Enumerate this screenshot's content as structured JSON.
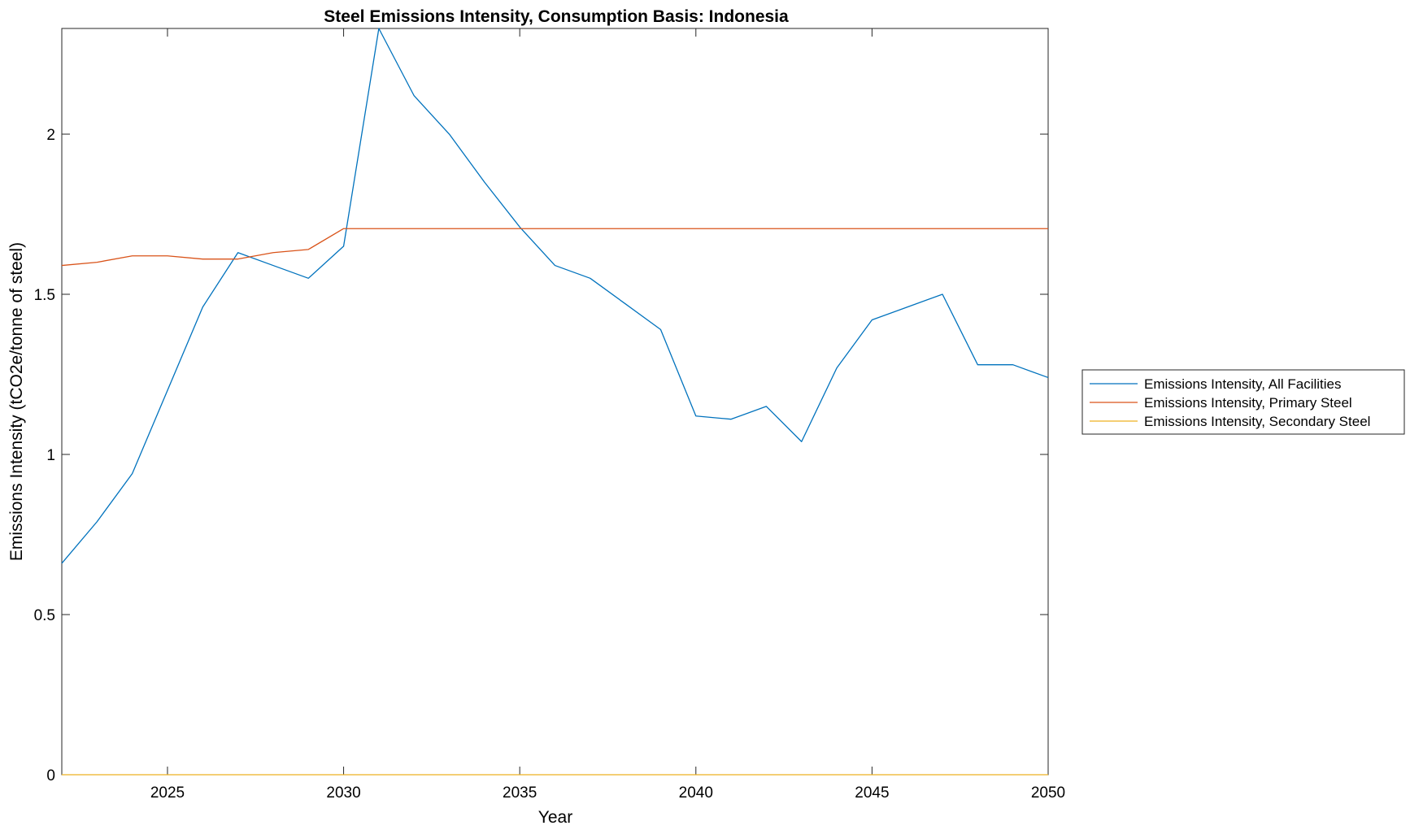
{
  "chart_data": {
    "type": "line",
    "title": "Steel Emissions Intensity, Consumption Basis: Indonesia",
    "xlabel": "Year",
    "ylabel": "Emissions Intensity (tCO2e/tonne of steel)",
    "xlim": [
      2022,
      2050
    ],
    "ylim": [
      0,
      2.33
    ],
    "xticks": [
      2025,
      2030,
      2035,
      2040,
      2045,
      2050
    ],
    "xtick_labels": [
      "2025",
      "2030",
      "2035",
      "2040",
      "2045",
      "2050"
    ],
    "yticks": [
      0,
      0.5,
      1,
      1.5,
      2
    ],
    "ytick_labels": [
      "0",
      "0.5",
      "1",
      "1.5",
      "2"
    ],
    "grid": false,
    "legend_position": "outside-right",
    "x": [
      2022,
      2023,
      2024,
      2025,
      2026,
      2027,
      2028,
      2029,
      2030,
      2031,
      2032,
      2033,
      2034,
      2035,
      2036,
      2037,
      2038,
      2039,
      2040,
      2041,
      2042,
      2043,
      2044,
      2045,
      2046,
      2047,
      2048,
      2049,
      2050
    ],
    "series": [
      {
        "name": "Emissions Intensity, All Facilities",
        "color": "#0072BD",
        "values": [
          0.66,
          0.79,
          0.94,
          1.2,
          1.46,
          1.63,
          1.59,
          1.55,
          1.65,
          2.33,
          2.12,
          2.0,
          1.85,
          1.71,
          1.59,
          1.55,
          1.47,
          1.39,
          1.12,
          1.11,
          1.15,
          1.04,
          1.27,
          1.42,
          1.46,
          1.5,
          1.28,
          1.28,
          1.24
        ]
      },
      {
        "name": "Emissions Intensity, Primary Steel",
        "color": "#D95319",
        "values": [
          1.59,
          1.6,
          1.62,
          1.62,
          1.61,
          1.61,
          1.63,
          1.64,
          1.705,
          1.705,
          1.705,
          1.705,
          1.705,
          1.705,
          1.705,
          1.705,
          1.705,
          1.705,
          1.705,
          1.705,
          1.705,
          1.705,
          1.705,
          1.705,
          1.705,
          1.705,
          1.705,
          1.705,
          1.705
        ]
      },
      {
        "name": "Emissions Intensity, Secondary Steel",
        "color": "#EDB120",
        "values": [
          0,
          0,
          0,
          0,
          0,
          0,
          0,
          0,
          0,
          0,
          0,
          0,
          0,
          0,
          0,
          0,
          0,
          0,
          0,
          0,
          0,
          0,
          0,
          0,
          0,
          0,
          0,
          0,
          0
        ]
      }
    ]
  }
}
